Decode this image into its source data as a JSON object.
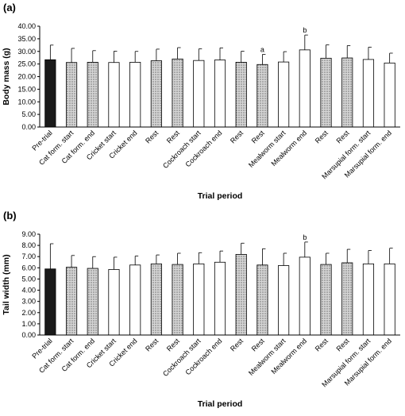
{
  "chart_data": [
    {
      "type": "bar",
      "panel_label": "(a)",
      "xlabel": "Trial period",
      "ylabel": "Body mass (g)",
      "ylim": [
        0,
        40
      ],
      "ytick_step": 5,
      "ytick_decimals": 2,
      "categories": [
        "Pre-trial",
        "Cat form. start",
        "Cat form. end",
        "Cricket start",
        "Cricket end",
        "Rest",
        "Rest",
        "Cockroach start",
        "Cockroach end",
        "Rest",
        "Rest",
        "Mealworm start",
        "Mealworm end",
        "Rest",
        "Rest",
        "Marsupial form. start",
        "Marsupial form. end"
      ],
      "values": [
        26.7,
        25.6,
        25.7,
        25.6,
        25.7,
        26.3,
        27.0,
        26.4,
        26.6,
        25.7,
        24.8,
        25.8,
        30.6,
        27.3,
        27.4,
        26.8,
        25.4
      ],
      "errors": [
        5.8,
        5.6,
        4.6,
        4.5,
        4.3,
        4.6,
        4.5,
        4.6,
        4.8,
        4.4,
        4.0,
        4.1,
        5.9,
        5.3,
        4.9,
        4.9,
        3.9
      ],
      "fills": [
        "solid",
        "hatched",
        "hatched",
        "open",
        "open",
        "hatched",
        "hatched",
        "open",
        "open",
        "hatched",
        "hatched",
        "open",
        "open",
        "hatched",
        "hatched",
        "open",
        "open"
      ],
      "annotations": [
        {
          "index": 10,
          "text": "a"
        },
        {
          "index": 12,
          "text": "b"
        }
      ]
    },
    {
      "type": "bar",
      "panel_label": "(b)",
      "xlabel": "Trial period",
      "ylabel": "Tail width (mm)",
      "ylim": [
        0,
        9
      ],
      "ytick_step": 1,
      "ytick_decimals": 2,
      "categories": [
        "Pre-trial",
        "Cat form. start",
        "Cat form. end",
        "Cricket start",
        "Cricket end",
        "Rest",
        "Rest",
        "Cockroach start",
        "Cockroach end",
        "Rest",
        "Rest",
        "Mealworm start",
        "Mealworm end",
        "Rest",
        "Rest",
        "Marsupial form. start",
        "Marsupial form. end"
      ],
      "values": [
        5.9,
        6.05,
        5.95,
        5.85,
        6.25,
        6.35,
        6.3,
        6.35,
        6.5,
        7.2,
        6.25,
        6.2,
        6.95,
        6.3,
        6.45,
        6.35,
        6.35
      ],
      "errors": [
        2.25,
        1.05,
        1.05,
        1.1,
        0.8,
        0.8,
        1.0,
        1.0,
        1.0,
        1.0,
        1.45,
        1.1,
        1.35,
        1.0,
        1.2,
        1.2,
        1.4
      ],
      "fills": [
        "solid",
        "hatched",
        "hatched",
        "open",
        "open",
        "hatched",
        "hatched",
        "open",
        "open",
        "hatched",
        "hatched",
        "open",
        "open",
        "hatched",
        "hatched",
        "open",
        "open"
      ],
      "annotations": [
        {
          "index": 12,
          "text": "b"
        }
      ]
    }
  ],
  "colors": {
    "solid_bar": "#1a1a1a",
    "hatched_bar": "#b4b4b4",
    "open_bar": "#ffffff",
    "axis": "#000000"
  }
}
